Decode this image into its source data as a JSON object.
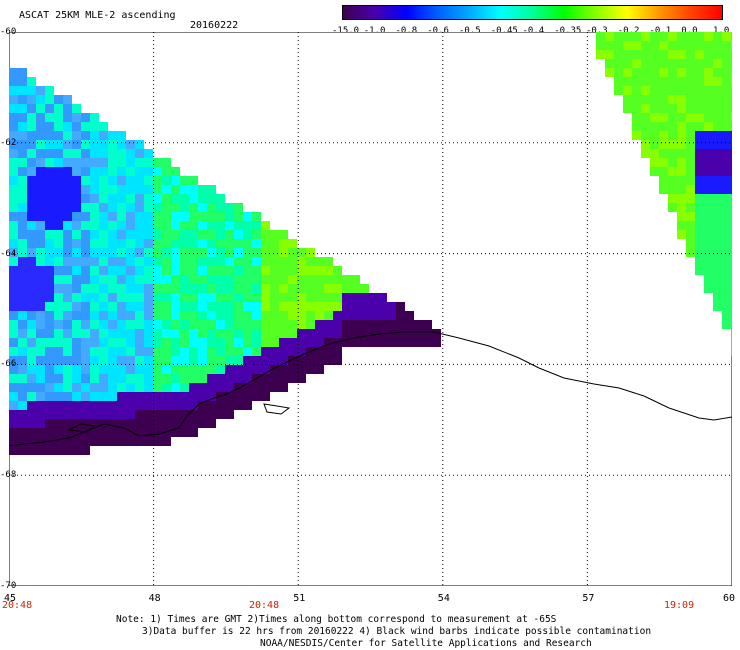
{
  "header": {
    "title": "ASCAT 25KM MLE-2 ascending",
    "date": "20160222"
  },
  "colorbar": {
    "labels": [
      "-15.0",
      "-1.0",
      "-0.8",
      "-0.6",
      "-0.5",
      "-0.45",
      "-0.4",
      "-0.35",
      "-0.3",
      "-0.2",
      "-0.1",
      "0.0",
      "1.0"
    ],
    "colors": [
      "#3d0050",
      "#4a00aa",
      "#0000ff",
      "#0060ff",
      "#00aaff",
      "#00ffff",
      "#00ff99",
      "#00ff00",
      "#88ff00",
      "#ffff00",
      "#ff9900",
      "#ff4400",
      "#ff0000"
    ]
  },
  "axes": {
    "lat_labels": [
      "-60",
      "-62",
      "-64",
      "-66",
      "-68",
      "-70"
    ],
    "lon_labels": [
      "45",
      "48",
      "51",
      "54",
      "57",
      "60"
    ],
    "time_labels": [
      "20:48",
      "20:48",
      "19:09"
    ]
  },
  "notes": {
    "line1": "Note: 1) Times are GMT 2)Times along bottom correspond to measurement at -65S",
    "line2": "3)Data buffer is 22 hrs from 20160222 4) Black wind barbs indicate possible contamination",
    "line3": "NOAA/NESDIS/Center for Satellite Applications and Research"
  },
  "map": {
    "lat_range": [
      -70,
      -60
    ],
    "lon_range": [
      45,
      60
    ],
    "grid": "dotted"
  }
}
